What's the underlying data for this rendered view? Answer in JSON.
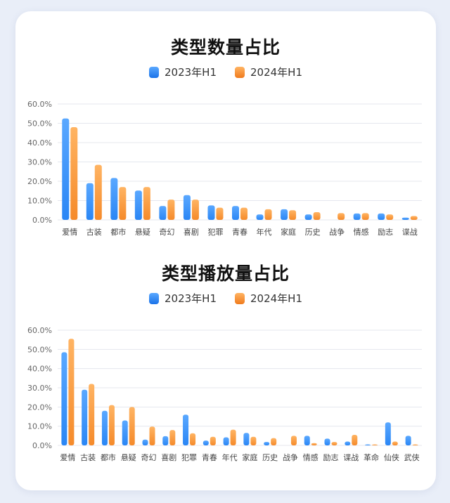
{
  "colors": {
    "series0": "#2a86f5",
    "series1": "#f58a2a"
  },
  "chart_data": [
    {
      "type": "bar",
      "title": "类型数量占比",
      "series": [
        {
          "name": "2023年H1",
          "values": [
            52.5,
            19,
            21.7,
            15.2,
            7.2,
            12.8,
            7.5,
            7.2,
            2.8,
            5.5,
            2.8,
            0,
            3.3,
            3.3,
            1.2
          ]
        },
        {
          "name": "2024年H1",
          "values": [
            48,
            28.5,
            17,
            17,
            10.5,
            10.5,
            6.3,
            6.3,
            5.5,
            5,
            4,
            3.5,
            3.5,
            2.8,
            2
          ]
        }
      ],
      "categories": [
        "爱情",
        "古装",
        "都市",
        "悬疑",
        "奇幻",
        "喜剧",
        "犯罪",
        "青春",
        "年代",
        "家庭",
        "历史",
        "战争",
        "情感",
        "励志",
        "谍战"
      ],
      "ylim": [
        0,
        60
      ],
      "yticks": [
        "0.0%",
        "10.0%",
        "20.0%",
        "30.0%",
        "40.0%",
        "50.0%",
        "60.0%"
      ],
      "legend_position": "top-center",
      "grid": true
    },
    {
      "type": "bar",
      "title": "类型播放量占比",
      "series": [
        {
          "name": "2023年H1",
          "values": [
            48.5,
            29,
            18,
            13,
            3,
            4.8,
            16,
            2.5,
            4.2,
            6.5,
            1.8,
            0,
            5,
            3.5,
            2,
            0.5,
            12,
            5
          ]
        },
        {
          "name": "2024年H1",
          "values": [
            55.5,
            32,
            21,
            20,
            9.8,
            8,
            6.3,
            4.5,
            8.2,
            4.5,
            3.8,
            5,
            1.2,
            1.8,
            5.5,
            0.5,
            2,
            0.5
          ]
        }
      ],
      "categories": [
        "爱情",
        "古装",
        "都市",
        "悬疑",
        "奇幻",
        "喜剧",
        "犯罪",
        "青春",
        "年代",
        "家庭",
        "历史",
        "战争",
        "情感",
        "励志",
        "谍战",
        "革命",
        "仙侠",
        "武侠"
      ],
      "ylim": [
        0,
        60
      ],
      "yticks": [
        "0.0%",
        "10.0%",
        "20.0%",
        "30.0%",
        "40.0%",
        "50.0%",
        "60.0%"
      ],
      "legend_position": "top-center",
      "grid": true
    }
  ]
}
